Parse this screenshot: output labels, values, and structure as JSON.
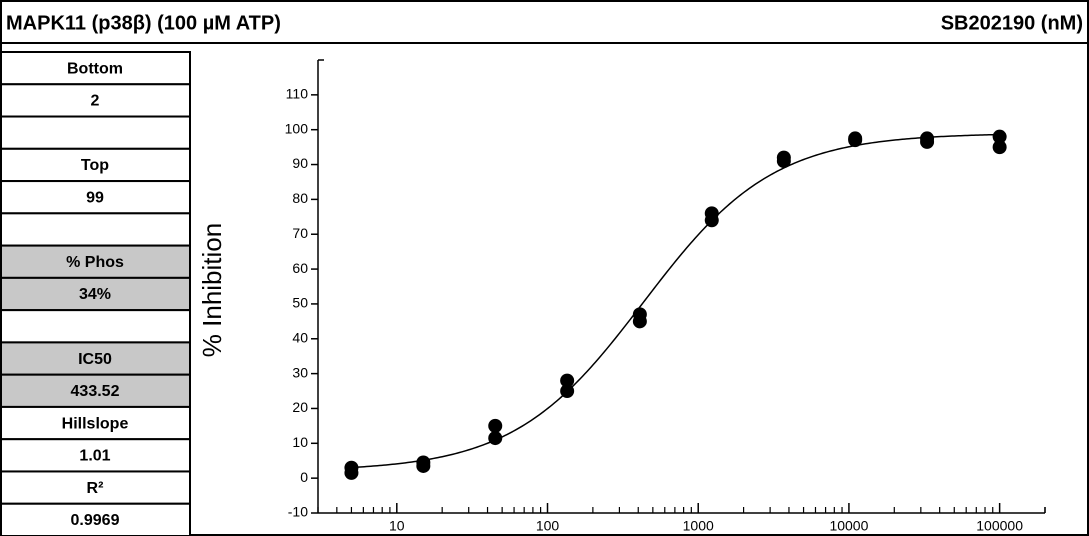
{
  "header": {
    "title": "MAPK11 (p38β)  (100 µM ATP)",
    "compound": "SB202190  (nM)"
  },
  "table": {
    "groups": [
      [
        {
          "text": "Bottom"
        },
        {
          "text": "2"
        }
      ],
      [
        {
          "text": "Top"
        },
        {
          "text": "99"
        }
      ],
      [
        {
          "text": "% Phos",
          "shaded": true
        },
        {
          "text": "34%",
          "shaded": true
        }
      ],
      [
        {
          "text": "IC50",
          "shaded": true
        },
        {
          "text": "433.52",
          "shaded": true
        },
        {
          "text": "Hillslope"
        },
        {
          "text": "1.01"
        },
        {
          "text": "R²"
        },
        {
          "text": "0.9969"
        }
      ]
    ]
  },
  "fit": {
    "bottom": 2,
    "top": 99,
    "ic50": 433.52,
    "hillslope": 1.01
  },
  "chart_data": {
    "type": "scatter",
    "y_label": "% Inhibition",
    "x": [
      5,
      5,
      15,
      15,
      45,
      45,
      135,
      135,
      410,
      410,
      1230,
      1230,
      3700,
      3700,
      11000,
      11000,
      33000,
      33000,
      100000,
      100000
    ],
    "values": [
      3,
      1.5,
      4.5,
      3.5,
      15,
      11.5,
      28,
      25,
      47,
      45,
      76,
      74,
      92,
      91,
      97.5,
      97,
      97.5,
      96.5,
      98,
      95
    ],
    "color": "#000000",
    "log_x": true,
    "minor_ticks": true,
    "xlim": [
      3,
      200000
    ],
    "xticks": [
      10,
      100,
      1000,
      10000,
      100000
    ],
    "ylim": [
      -10,
      120
    ],
    "yticks": [
      -10,
      0,
      10,
      20,
      30,
      40,
      50,
      60,
      70,
      80,
      90,
      100,
      110
    ]
  }
}
